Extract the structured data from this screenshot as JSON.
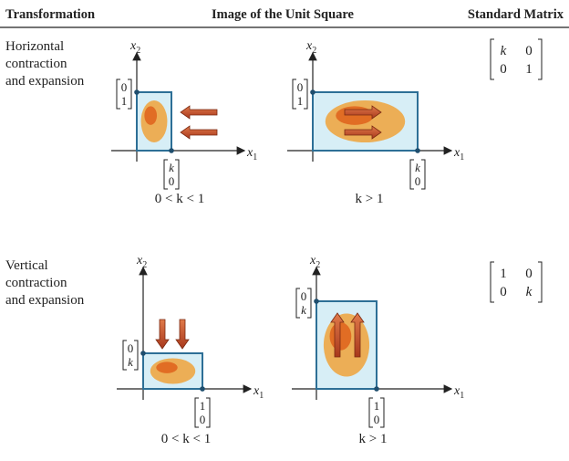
{
  "header": {
    "columns": [
      "Transformation",
      "Image of the Unit Square",
      "Standard Matrix"
    ]
  },
  "axes": {
    "symbol": "x",
    "horizontal": "1",
    "vertical": "2"
  },
  "rows": [
    {
      "label": [
        "Horizontal",
        "contraction",
        "and expansion"
      ],
      "matrix": [
        [
          "k",
          "0"
        ],
        [
          "0",
          "1"
        ]
      ],
      "panels": [
        {
          "caption": "0 < k < 1",
          "vertical_vector": [
            "0",
            "1"
          ],
          "horizontal_vector": [
            "k",
            "0"
          ]
        },
        {
          "caption": "k > 1",
          "vertical_vector": [
            "0",
            "1"
          ],
          "horizontal_vector": [
            "k",
            "0"
          ]
        }
      ]
    },
    {
      "label": [
        "Vertical",
        "contraction",
        "and expansion"
      ],
      "matrix": [
        [
          "1",
          "0"
        ],
        [
          "0",
          "k"
        ]
      ],
      "panels": [
        {
          "caption": "0 < k < 1",
          "vertical_vector": [
            "0",
            "k"
          ],
          "horizontal_vector": [
            "1",
            "0"
          ]
        },
        {
          "caption": "k > 1",
          "vertical_vector": [
            "0",
            "k"
          ],
          "horizontal_vector": [
            "1",
            "0"
          ]
        }
      ]
    }
  ]
}
